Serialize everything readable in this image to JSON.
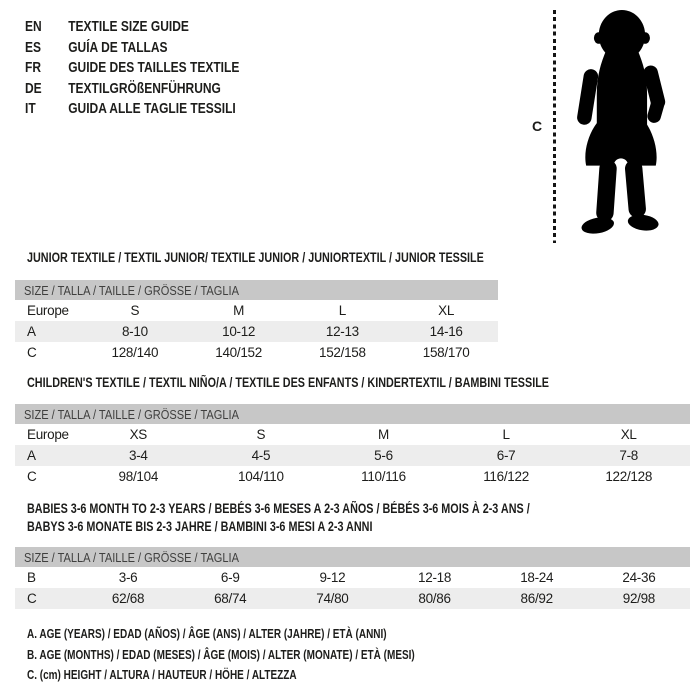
{
  "languages": [
    {
      "code": "EN",
      "label": "TEXTILE SIZE GUIDE"
    },
    {
      "code": "ES",
      "label": "GUÍA DE TALLAS"
    },
    {
      "code": "FR",
      "label": "GUIDE DES TAILLES TEXTILE"
    },
    {
      "code": "DE",
      "label": "TEXTILGRÖßENFÜHRUNG"
    },
    {
      "code": "IT",
      "label": "GUIDA ALLE TAGLIE TESSILI"
    }
  ],
  "figure": {
    "measure_label": "C",
    "silhouette": "baby-toddler-standing"
  },
  "size_row_header": "SIZE / TALLA / TAILLE / GRÖSSE / TAGLIA",
  "tables": [
    {
      "id": "junior",
      "title_lines": [
        "JUNIOR TEXTILE / TEXTIL JUNIOR/ TEXTILE JUNIOR / JUNIORTEXTIL / JUNIOR TESSILE"
      ],
      "rows": [
        {
          "label": "Europe",
          "values": [
            "S",
            "M",
            "L",
            "XL"
          ],
          "shaded": false
        },
        {
          "label": "A",
          "values": [
            "8-10",
            "10-12",
            "12-13",
            "14-16"
          ],
          "shaded": true
        },
        {
          "label": "C",
          "values": [
            "128/140",
            "140/152",
            "152/158",
            "158/170"
          ],
          "shaded": false
        }
      ]
    },
    {
      "id": "children",
      "title_lines": [
        "CHILDREN'S TEXTILE / TEXTIL NIÑO/A / TEXTILE DES ENFANTS / KINDERTEXTIL / BAMBINI TESSILE"
      ],
      "rows": [
        {
          "label": "Europe",
          "values": [
            "XS",
            "S",
            "M",
            "L",
            "XL"
          ],
          "shaded": false
        },
        {
          "label": "A",
          "values": [
            "3-4",
            "4-5",
            "5-6",
            "6-7",
            "7-8"
          ],
          "shaded": true
        },
        {
          "label": "C",
          "values": [
            "98/104",
            "104/110",
            "110/116",
            "116/122",
            "122/128"
          ],
          "shaded": false
        }
      ]
    },
    {
      "id": "babies",
      "title_lines": [
        "BABIES 3-6 MONTH TO 2-3 YEARS / BEBÉS 3-6 MESES A 2-3 AÑOS / BÉBÉS 3-6 MOIS À 2-3 ANS /",
        "BABYS 3-6 MONATE BIS 2-3 JAHRE / BAMBINI 3-6 MESI A 2-3 ANNI"
      ],
      "rows": [
        {
          "label": "B",
          "values": [
            "3-6",
            "6-9",
            "9-12",
            "12-18",
            "18-24",
            "24-36"
          ],
          "shaded": false
        },
        {
          "label": "C",
          "values": [
            "62/68",
            "68/74",
            "74/80",
            "80/86",
            "86/92",
            "92/98"
          ],
          "shaded": true
        }
      ]
    }
  ],
  "legend": [
    "A. AGE (YEARS) / EDAD (AÑOS) / ÂGE (ANS) / ALTER (JAHRE) / ETÀ (ANNI)",
    "B. AGE (MONTHS) / EDAD (MESES) / ÂGE (MOIS) / ALTER (MONATE) / ETÀ (MESI)",
    "C. (cm) HEIGHT / ALTURA / HAUTEUR / HÖHE / ALTEZZA"
  ],
  "colors": {
    "header_bar": "#c7c7c7",
    "header_bar_text": "#3f3f3e",
    "shaded_row": "#ededed",
    "text": "#1d1d1b",
    "silhouette": "#000000"
  }
}
